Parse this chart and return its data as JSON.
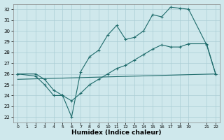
{
  "xlabel": "Humidex (Indice chaleur)",
  "xlim": [
    -0.5,
    22.5
  ],
  "ylim": [
    21.5,
    32.5
  ],
  "yticks": [
    22,
    23,
    24,
    25,
    26,
    27,
    28,
    29,
    30,
    31,
    32
  ],
  "xticks": [
    0,
    1,
    2,
    3,
    4,
    5,
    6,
    7,
    8,
    9,
    10,
    11,
    12,
    13,
    14,
    15,
    16,
    17,
    18,
    19,
    21,
    22
  ],
  "bg_color": "#cfe8ec",
  "line_color": "#1e6b6b",
  "grid_color": "#aacdd4",
  "curve1_x": [
    0,
    2,
    3,
    4,
    5,
    6,
    7,
    8,
    9,
    10,
    11,
    12,
    13,
    14,
    15,
    16,
    17,
    18,
    19,
    21,
    22
  ],
  "curve1_y": [
    26,
    25.8,
    25,
    24,
    24,
    22,
    26.2,
    27.6,
    28.2,
    29.6,
    30.5,
    29.2,
    29.4,
    30.0,
    31.5,
    31.3,
    32.2,
    32.1,
    32.0,
    28.7,
    26.0
  ],
  "curve2_x": [
    0,
    2,
    3,
    4,
    5,
    6,
    7,
    8,
    9,
    10,
    11,
    12,
    13,
    14,
    15,
    16,
    17,
    18,
    19,
    21,
    22
  ],
  "curve2_y": [
    26,
    26,
    25.5,
    24.5,
    24,
    23.5,
    24.2,
    25.0,
    25.5,
    26.0,
    26.5,
    26.8,
    27.3,
    27.8,
    28.3,
    28.7,
    28.5,
    28.5,
    28.8,
    28.8,
    26.0
  ],
  "curve3_x": [
    0,
    22
  ],
  "curve3_y": [
    25.5,
    26.0
  ]
}
